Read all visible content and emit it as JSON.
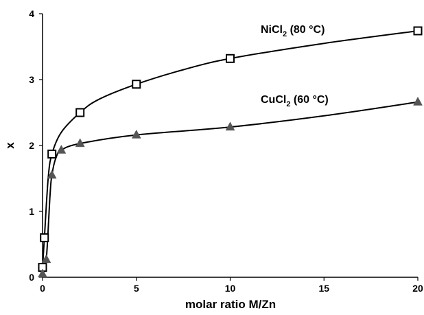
{
  "chart_data": {
    "type": "scatter",
    "xlabel": "molar ratio M/Zn",
    "ylabel": "x",
    "xlim": [
      0,
      20
    ],
    "ylim": [
      0,
      4
    ],
    "x_ticks": [
      0,
      5,
      10,
      15,
      20
    ],
    "y_ticks": [
      0,
      1,
      2,
      3,
      4
    ],
    "grid": false,
    "legend": "none",
    "series": [
      {
        "name": "NiCl2 (80 °C)",
        "label_parts": {
          "pre": "NiCl",
          "sub": "2",
          "post": " (80 °C)"
        },
        "marker": "open-square",
        "color": "#000000",
        "x": [
          0.0,
          0.1,
          0.5,
          2,
          5,
          10,
          20
        ],
        "y": [
          0.15,
          0.6,
          1.87,
          2.5,
          2.93,
          3.32,
          3.74
        ]
      },
      {
        "name": "CuCl2 (60 °C)",
        "label_parts": {
          "pre": "CuCl",
          "sub": "2",
          "post": " (60 °C)"
        },
        "marker": "filled-triangle",
        "color": "#555555",
        "x": [
          0.0,
          0.2,
          0.5,
          1,
          2,
          5,
          10,
          20
        ],
        "y": [
          0.05,
          0.27,
          1.55,
          1.93,
          2.03,
          2.16,
          2.28,
          2.66
        ]
      }
    ],
    "fit_curves": [
      {
        "series": "NiCl2 (80 °C)",
        "x": [
          0.0,
          0.1,
          0.3,
          0.5,
          1,
          2,
          3,
          5,
          7.5,
          10,
          15,
          20
        ],
        "y": [
          0.15,
          0.6,
          1.5,
          1.87,
          2.2,
          2.5,
          2.7,
          2.93,
          3.15,
          3.32,
          3.55,
          3.74
        ]
      },
      {
        "series": "CuCl2 (60 °C)",
        "x": [
          0.0,
          0.2,
          0.4,
          0.5,
          0.7,
          1,
          2,
          5,
          10,
          15,
          20
        ],
        "y": [
          0.05,
          0.27,
          1.25,
          1.55,
          1.8,
          1.93,
          2.03,
          2.16,
          2.28,
          2.45,
          2.66
        ]
      }
    ]
  }
}
